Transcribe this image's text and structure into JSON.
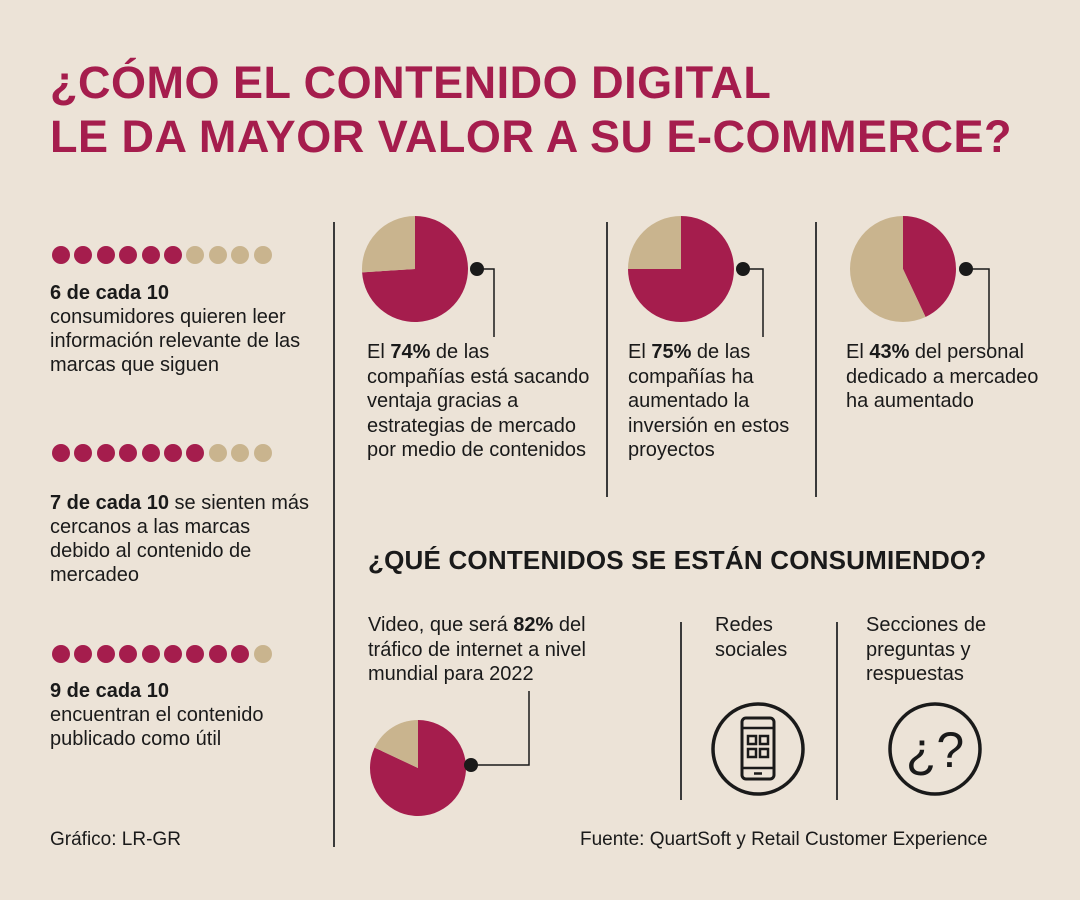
{
  "colors": {
    "magenta": "#a51d4d",
    "tan": "#c9b48e",
    "background": "#ece3d7",
    "text": "#1a1a1a"
  },
  "title": {
    "line1": "¿CÓMO EL CONTENIDO DIGITAL",
    "line2": "LE DA MAYOR VALOR A SU E-COMMERCE?"
  },
  "stats": [
    {
      "filled": 6,
      "total": 10,
      "bold": "6 de cada 10",
      "rest": "consumidores quieren leer información relevante de las marcas que siguen"
    },
    {
      "filled": 7,
      "total": 10,
      "bold": "7 de cada 10",
      "rest": " se sienten más cercanos a las marcas debido al contenido de mercadeo"
    },
    {
      "filled": 9,
      "total": 10,
      "bold": "9 de cada 10",
      "rest": "encuentran el contenido publicado como útil"
    }
  ],
  "pies": [
    {
      "pre": "El ",
      "pct": "74%",
      "post": " de las compañías está sacando ventaja gracias a estrategias de mercado por medio de contenidos"
    },
    {
      "pre": "El ",
      "pct": "75%",
      "post": " de las compañías ha aumentado la inversión en estos proyectos"
    },
    {
      "pre": "El ",
      "pct": "43%",
      "post": " del personal dedicado a mercadeo ha aumentado"
    }
  ],
  "subtitle": "¿QUÉ CONTENIDOS SE ESTÁN CONSUMIENDO?",
  "content": {
    "video": {
      "pre": "Video, que será ",
      "pct": "82%",
      "post": " del tráfico de internet a nivel mundial para 2022"
    },
    "social": "Redes sociales",
    "qa": "Secciones de preguntas y respuestas",
    "qa_glyph": "¿?",
    "social_icon": "smartphone-icon",
    "qa_icon": "question-marks-icon"
  },
  "credit": "Gráfico: LR-GR",
  "source": "Fuente: QuartSoft y Retail Customer Experience",
  "chart_data": [
    {
      "type": "pie",
      "categories": [
        "",
        ""
      ],
      "values": [
        74,
        26
      ]
    },
    {
      "type": "pie",
      "categories": [
        "",
        ""
      ],
      "values": [
        75,
        25
      ]
    },
    {
      "type": "pie",
      "categories": [
        "",
        ""
      ],
      "values": [
        43,
        57
      ]
    },
    {
      "type": "pie",
      "categories": [
        "",
        ""
      ],
      "values": [
        82,
        18
      ]
    }
  ]
}
